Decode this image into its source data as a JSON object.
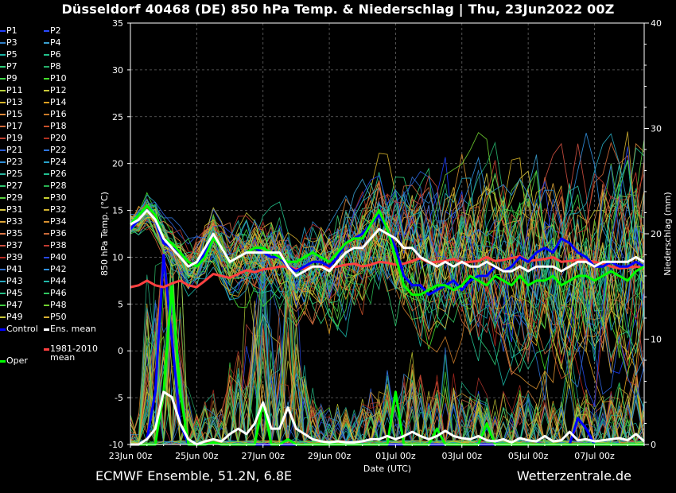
{
  "header": {
    "title": "Düsseldorf 40468 (DE)  850 hPa Temp. & Niederschlag | Thu, 23Jun2022 00Z"
  },
  "footer": {
    "left": "ECMWF Ensemble, 51.2N, 6.8E",
    "right": "Wetterzentrale.de"
  },
  "legend": {
    "members": [
      {
        "label": "P1",
        "color": "#1f3fff"
      },
      {
        "label": "P2",
        "color": "#2a4cff"
      },
      {
        "label": "P3",
        "color": "#2f80c8"
      },
      {
        "label": "P4",
        "color": "#3aa0d0"
      },
      {
        "label": "P5",
        "color": "#19b5a5"
      },
      {
        "label": "P6",
        "color": "#22c08a"
      },
      {
        "label": "P7",
        "color": "#2fd07a"
      },
      {
        "label": "P8",
        "color": "#26b06a"
      },
      {
        "label": "P9",
        "color": "#3fd84a"
      },
      {
        "label": "P10",
        "color": "#43e02a"
      },
      {
        "label": "P11",
        "color": "#b8d23a"
      },
      {
        "label": "P12",
        "color": "#c9c83a"
      },
      {
        "label": "P13",
        "color": "#d8b52a"
      },
      {
        "label": "P14",
        "color": "#e0a020"
      },
      {
        "label": "P15",
        "color": "#e08a3a"
      },
      {
        "label": "P16",
        "color": "#c97a28"
      },
      {
        "label": "P17",
        "color": "#d36a3a"
      },
      {
        "label": "P18",
        "color": "#c8502a"
      },
      {
        "label": "P19",
        "color": "#c04030"
      },
      {
        "label": "P20",
        "color": "#b03020"
      },
      {
        "label": "P21",
        "color": "#2a5fd8"
      },
      {
        "label": "P22",
        "color": "#2f75e0"
      },
      {
        "label": "P23",
        "color": "#2f8fd8"
      },
      {
        "label": "P24",
        "color": "#28a0c8"
      },
      {
        "label": "P25",
        "color": "#2ab8a0"
      },
      {
        "label": "P26",
        "color": "#20c090"
      },
      {
        "label": "P27",
        "color": "#30c870"
      },
      {
        "label": "P28",
        "color": "#28b050"
      },
      {
        "label": "P29",
        "color": "#58d040"
      },
      {
        "label": "P30",
        "color": "#c8d030"
      },
      {
        "label": "P31",
        "color": "#d8c840"
      },
      {
        "label": "P32",
        "color": "#d0b030"
      },
      {
        "label": "P33",
        "color": "#e0a838"
      },
      {
        "label": "P34",
        "color": "#d89030"
      },
      {
        "label": "P35",
        "color": "#e07848"
      },
      {
        "label": "P36",
        "color": "#c86838"
      },
      {
        "label": "P37",
        "color": "#d05040"
      },
      {
        "label": "P38",
        "color": "#c03a30"
      },
      {
        "label": "P39",
        "color": "#b82820"
      },
      {
        "label": "P40",
        "color": "#2848e8"
      },
      {
        "label": "P41",
        "color": "#3070d0"
      },
      {
        "label": "P42",
        "color": "#3090e0"
      },
      {
        "label": "P43",
        "color": "#28a8c0"
      },
      {
        "label": "P44",
        "color": "#20b8a8"
      },
      {
        "label": "P45",
        "color": "#28c088"
      },
      {
        "label": "P46",
        "color": "#30c860"
      },
      {
        "label": "P47",
        "color": "#40d040"
      },
      {
        "label": "P48",
        "color": "#70d030"
      },
      {
        "label": "P49",
        "color": "#c8c838"
      },
      {
        "label": "P50",
        "color": "#d8b030"
      }
    ],
    "control": {
      "label": "Control",
      "color": "#0000ff"
    },
    "ens_mean": {
      "label": "Ens. mean",
      "color": "#ffffff"
    },
    "oper": {
      "label": "Oper",
      "color": "#00ff00"
    },
    "climate": {
      "label_line1": "1981-2010",
      "label_line2": "mean",
      "color": "#ff4040"
    }
  },
  "chart_data": {
    "type": "line",
    "title": "Düsseldorf 40468 (DE)  850 hPa Temp. & Niederschlag | Thu, 23Jun2022 00Z",
    "xlabel": "Date (UTC)",
    "ylabel": "850 hPa Temp. (°C)",
    "y2label": "Niederschlag (mm)",
    "xlim": [
      0,
      15.5
    ],
    "ylim": [
      -10,
      35
    ],
    "y2lim": [
      0,
      40
    ],
    "x_unit": "days after 23Jun2022 00Z",
    "x_ticks": [
      {
        "x": 0,
        "label": "23Jun 00z"
      },
      {
        "x": 2,
        "label": "25Jun 00z"
      },
      {
        "x": 4,
        "label": "27Jun 00z"
      },
      {
        "x": 6,
        "label": "29Jun 00z"
      },
      {
        "x": 8,
        "label": "01Jul 00z"
      },
      {
        "x": 10,
        "label": "03Jul 00z"
      },
      {
        "x": 12,
        "label": "05Jul 00z"
      },
      {
        "x": 14,
        "label": "07Jul 00z"
      }
    ],
    "y_ticks": [
      -10,
      -5,
      0,
      5,
      10,
      15,
      20,
      25,
      30,
      35
    ],
    "y2_ticks": [
      0,
      10,
      20,
      30,
      40
    ],
    "grid": true,
    "legend_position": "left outside",
    "x": [
      0,
      0.25,
      0.5,
      0.75,
      1,
      1.25,
      1.5,
      1.75,
      2,
      2.25,
      2.5,
      2.75,
      3,
      3.25,
      3.5,
      3.75,
      4,
      4.25,
      4.5,
      4.75,
      5,
      5.25,
      5.5,
      5.75,
      6,
      6.25,
      6.5,
      6.75,
      7,
      7.25,
      7.5,
      7.75,
      8,
      8.25,
      8.5,
      8.75,
      9,
      9.25,
      9.5,
      9.75,
      10,
      10.25,
      10.5,
      10.75,
      11,
      11.25,
      11.5,
      11.75,
      12,
      12.25,
      12.5,
      12.75,
      13,
      13.25,
      13.5,
      13.75,
      14,
      14.25,
      14.5,
      14.75,
      15,
      15.25,
      15.5
    ],
    "series": [
      {
        "name": "Ens. mean",
        "axis": "temp",
        "color": "#ffffff",
        "width": 3,
        "values": [
          13.5,
          14,
          15,
          14,
          12,
          11,
          10,
          9,
          9.5,
          11,
          12.5,
          11,
          9.5,
          10,
          10.5,
          10.5,
          10.5,
          10.5,
          10.5,
          9,
          8,
          8.5,
          9,
          9,
          8.5,
          9.5,
          10.5,
          11,
          11,
          12,
          13,
          12.5,
          12,
          11,
          11,
          10,
          9.5,
          9,
          9.5,
          9,
          9.5,
          9,
          9,
          9.5,
          9,
          8.5,
          8.5,
          9,
          8.5,
          9,
          9,
          9,
          8.5,
          9,
          9.5,
          9.5,
          9,
          9.5,
          9.5,
          9.5,
          9.5,
          10,
          9.5
        ]
      },
      {
        "name": "Oper",
        "axis": "temp",
        "color": "#00ff00",
        "width": 3,
        "values": [
          13.5,
          14.5,
          15.5,
          14.5,
          12,
          11.5,
          10.5,
          9.5,
          9,
          10,
          12,
          11,
          9.5,
          10,
          10.5,
          11,
          11,
          10.5,
          10,
          9.5,
          9.5,
          10,
          10.5,
          10,
          9.5,
          10.5,
          11.5,
          12,
          12,
          13.5,
          15,
          13,
          10,
          7,
          6,
          6,
          6.5,
          7,
          7,
          6.5,
          7,
          8,
          7.5,
          7,
          8,
          7.5,
          7,
          8,
          7,
          7.5,
          7.5,
          8,
          7,
          7.5,
          8,
          8,
          7.5,
          8,
          8.5,
          8,
          7.5,
          8.5,
          9
        ]
      },
      {
        "name": "Control",
        "axis": "temp",
        "color": "#0000ff",
        "width": 3,
        "values": [
          13,
          14,
          15,
          14,
          11.5,
          11,
          10.5,
          9.5,
          9,
          10.5,
          12,
          11,
          9.5,
          10,
          10.5,
          11,
          10.5,
          10,
          10,
          9,
          8.5,
          9,
          9.5,
          9.5,
          9,
          10,
          11.5,
          12,
          12.5,
          13.5,
          14.5,
          13,
          11,
          8,
          7,
          7,
          6,
          6.5,
          7,
          7.5,
          6.5,
          7.5,
          8,
          8,
          9,
          8.5,
          9,
          10,
          9.5,
          10.5,
          11,
          10.5,
          12,
          11.5,
          10.5,
          10,
          9,
          9,
          9.5,
          9,
          9,
          9.5,
          9
        ]
      },
      {
        "name": "1981-2010 mean",
        "axis": "temp",
        "color": "#ff4040",
        "width": 3,
        "values": [
          6.8,
          7,
          7.5,
          7,
          6.8,
          7.2,
          7.5,
          7,
          6.8,
          7.5,
          8.2,
          8,
          7.8,
          8.2,
          8.6,
          8.4,
          8.7,
          8.8,
          9,
          9,
          8.7,
          8.8,
          9,
          9,
          8.9,
          9,
          9.2,
          9.3,
          9,
          9.2,
          9.5,
          9.4,
          9.2,
          9.3,
          9.6,
          9.9,
          9.4,
          9.5,
          9.6,
          9.8,
          9.4,
          9.5,
          9.6,
          10,
          9.6,
          9.7,
          9.9,
          10.1,
          9.6,
          9.7,
          9.8,
          10,
          9.5,
          9.6,
          9.7,
          9.7,
          9.5,
          9.3,
          9,
          8.8,
          8.9,
          9,
          8.8
        ]
      },
      {
        "name": "Ens. mean precipitation",
        "axis": "precip",
        "color": "#ffffff",
        "width": 3,
        "values": [
          0,
          0,
          0.5,
          1.5,
          5,
          4.5,
          2,
          0.5,
          0,
          0.3,
          0.5,
          0.3,
          1,
          1.5,
          1,
          2,
          4,
          1.5,
          1.5,
          3.5,
          1.5,
          1,
          0.5,
          0.3,
          0.2,
          0.3,
          0.2,
          0.2,
          0.3,
          0.5,
          0.5,
          0.8,
          0.5,
          0.8,
          1.2,
          0.8,
          0.5,
          0.8,
          1.3,
          0.8,
          0.6,
          0.5,
          0.8,
          0.4,
          0.3,
          0.5,
          0.2,
          0.6,
          0.4,
          0.3,
          0.8,
          0.3,
          0.4,
          1.2,
          0.4,
          0.5,
          0.3,
          0.4,
          0.5,
          0.6,
          0.4,
          1,
          0.3
        ]
      },
      {
        "name": "Oper precipitation",
        "axis": "precip",
        "color": "#00ff00",
        "width": 3,
        "values": [
          0,
          0,
          0,
          0,
          5,
          15,
          5,
          0,
          0,
          0,
          0.2,
          0,
          0,
          0,
          0,
          0,
          4,
          0,
          0,
          0.5,
          0,
          0,
          0,
          0,
          0,
          0,
          0,
          0,
          0,
          0,
          0,
          0,
          5,
          0,
          0,
          0,
          0,
          1.5,
          0,
          0,
          0,
          0,
          0,
          2,
          0,
          0,
          0,
          0,
          0,
          0,
          0,
          0,
          0,
          0,
          0,
          0,
          0,
          0,
          0,
          0,
          0,
          0,
          0
        ]
      },
      {
        "name": "Control precipitation",
        "axis": "precip",
        "color": "#0000ff",
        "width": 3,
        "values": [
          0,
          0,
          0.5,
          5,
          18,
          10,
          2,
          0,
          0,
          0,
          0.2,
          0,
          0,
          0,
          0,
          0,
          0,
          0,
          0,
          0,
          0,
          0,
          0,
          0,
          0,
          0,
          0,
          0,
          0,
          0,
          0,
          0,
          0,
          0,
          0,
          0,
          0,
          0,
          0,
          0,
          0,
          0,
          0,
          0,
          0,
          0,
          0,
          0,
          0,
          0,
          0,
          0,
          0,
          0,
          2.5,
          1.5,
          0,
          0,
          0,
          0,
          0,
          0,
          0
        ]
      }
    ]
  }
}
